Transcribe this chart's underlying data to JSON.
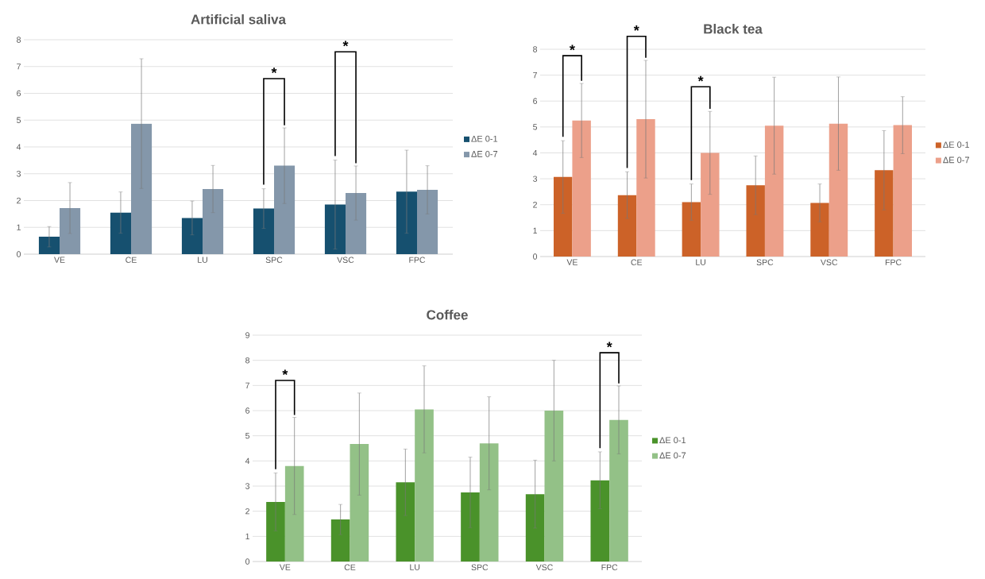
{
  "chart_data": [
    {
      "type": "bar",
      "title": "Artificial saliva",
      "categories": [
        "VE",
        "CE",
        "LU",
        "SPC",
        "VSC",
        "FPC"
      ],
      "series": [
        {
          "name": "ΔE 0-1",
          "color": "#16506f",
          "values": [
            0.65,
            1.55,
            1.35,
            1.7,
            1.85,
            2.33
          ],
          "errors": [
            0.38,
            0.77,
            0.63,
            0.74,
            1.66,
            1.55
          ]
        },
        {
          "name": "ΔE 0-7",
          "color": "#8497aa",
          "values": [
            1.72,
            4.87,
            2.43,
            3.3,
            2.28,
            2.4
          ],
          "errors": [
            0.95,
            2.42,
            0.88,
            1.41,
            1.01,
            0.9
          ]
        }
      ],
      "ylim": [
        0,
        8
      ],
      "yticks": [
        0,
        1,
        2,
        3,
        4,
        5,
        6,
        7,
        8
      ],
      "grid": "y",
      "legend": "right",
      "annotations": [
        "*",
        "*"
      ]
    },
    {
      "type": "bar",
      "title": "Black tea",
      "categories": [
        "VE",
        "CE",
        "LU",
        "SPC",
        "VSC",
        "FPC"
      ],
      "series": [
        {
          "name": "ΔE 0-1",
          "color": "#cc6228",
          "values": [
            3.07,
            2.37,
            2.1,
            2.75,
            2.07,
            3.33
          ],
          "errors": [
            1.4,
            0.9,
            0.7,
            1.13,
            0.73,
            1.53
          ]
        },
        {
          "name": "ΔE 0-7",
          "color": "#eca08a",
          "values": [
            5.25,
            5.3,
            4.0,
            5.05,
            5.13,
            5.07
          ],
          "errors": [
            1.43,
            2.27,
            1.6,
            1.87,
            1.8,
            1.1
          ]
        }
      ],
      "ylim": [
        0,
        8
      ],
      "yticks": [
        0,
        1,
        2,
        3,
        4,
        5,
        6,
        7,
        8
      ],
      "grid": "y",
      "legend": "right",
      "annotations": [
        "*",
        "*",
        "*"
      ]
    },
    {
      "type": "bar",
      "title": "Coffee",
      "categories": [
        "VE",
        "CE",
        "LU",
        "SPC",
        "VSC",
        "FPC"
      ],
      "series": [
        {
          "name": "ΔE 0-1",
          "color": "#4a922a",
          "values": [
            2.37,
            1.67,
            3.15,
            2.75,
            2.68,
            3.23
          ],
          "errors": [
            1.15,
            0.6,
            1.32,
            1.4,
            1.35,
            1.13
          ]
        },
        {
          "name": "ΔE 0-7",
          "color": "#93c187",
          "values": [
            3.8,
            4.67,
            6.05,
            4.7,
            6.0,
            5.63
          ],
          "errors": [
            1.93,
            2.03,
            1.73,
            1.85,
            2.0,
            1.35
          ]
        }
      ],
      "ylim": [
        0,
        9
      ],
      "yticks": [
        0,
        1,
        2,
        3,
        4,
        5,
        6,
        7,
        8,
        9
      ],
      "grid": "y",
      "legend": "right",
      "annotations": [
        "*",
        "*"
      ]
    }
  ]
}
